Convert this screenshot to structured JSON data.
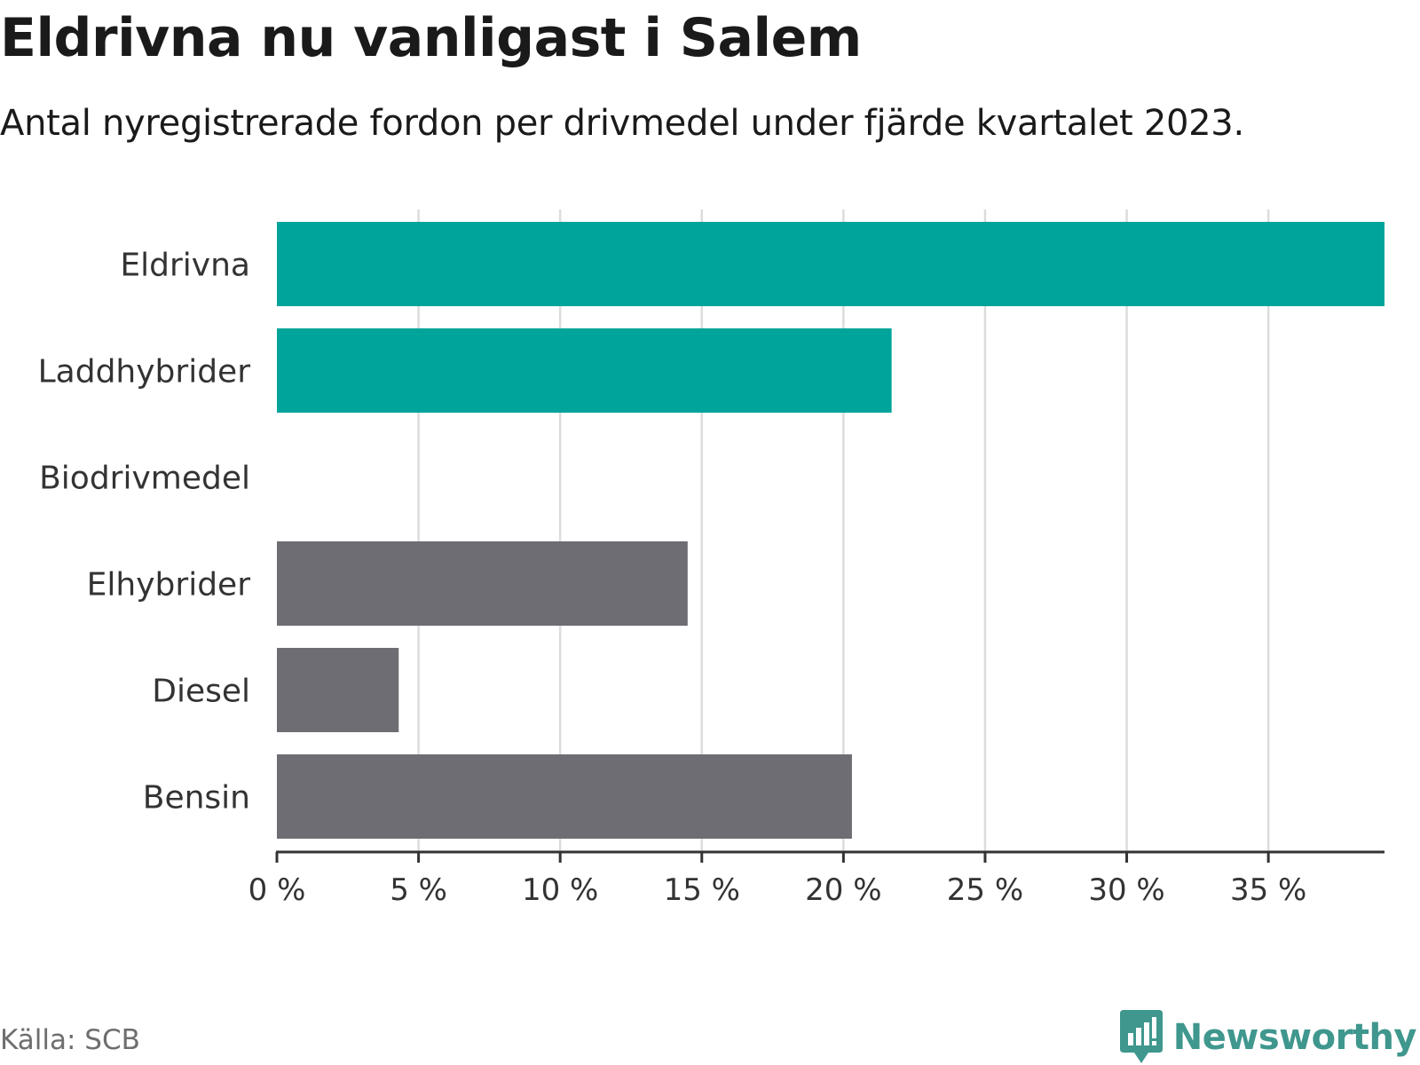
{
  "header": {
    "title": "Eldrivna nu vanligast i Salem",
    "subtitle": "Antal nyregistrerade fordon per drivmedel under fjärde kvartalet 2023."
  },
  "footer": {
    "source": "Källa: SCB",
    "brand": "Newsworthy"
  },
  "chart_data": {
    "type": "bar",
    "orientation": "horizontal",
    "title": "Eldrivna nu vanligast i Salem",
    "subtitle": "Antal nyregistrerade fordon per drivmedel under fjärde kvartalet 2023.",
    "xlabel": "",
    "ylabel": "",
    "categories": [
      "Eldrivna",
      "Laddhybrider",
      "Biodrivmedel",
      "Elhybrider",
      "Diesel",
      "Bensin"
    ],
    "values": [
      39.1,
      21.7,
      0,
      14.5,
      4.3,
      20.3
    ],
    "unit": "%",
    "xlim": [
      0,
      39.1
    ],
    "xticks": [
      0,
      5,
      10,
      15,
      20,
      25,
      30,
      35
    ],
    "xtick_labels": [
      "0 %",
      "5 %",
      "10 %",
      "15 %",
      "20 %",
      "25 %",
      "30 %",
      "35 %"
    ],
    "grid": true,
    "colors": {
      "electrified": "#00a49a",
      "other": "#6e6d73",
      "grid": "#dcdcdc",
      "axis": "#333333"
    },
    "bar_color_groups": [
      "electrified",
      "electrified",
      "other",
      "other",
      "other",
      "other"
    ]
  }
}
